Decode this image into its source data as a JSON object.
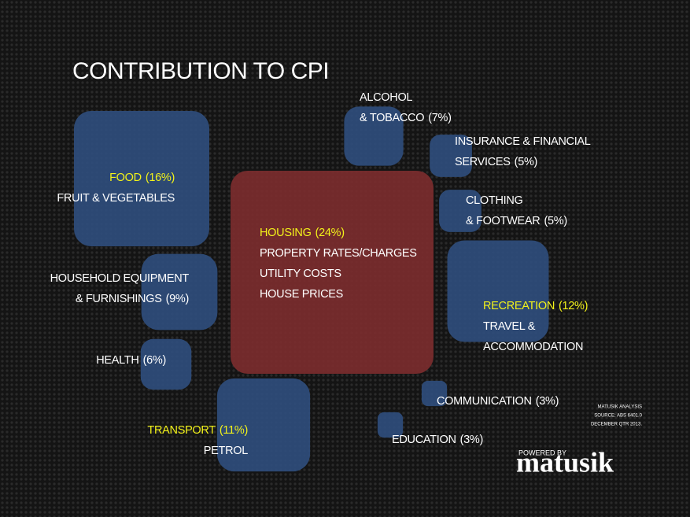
{
  "chart_data": {
    "type": "square",
    "title": "CONTRIBUTION TO CPI",
    "categories": [
      [
        "FOOD"
      ],
      [
        "ALCOHOL",
        "& TOBACCO"
      ],
      [
        "INSURANCE & FINANCIAL",
        "SERVICES"
      ],
      [
        "CLOTHING",
        "& FOOTWEAR"
      ],
      [
        "HOUSING"
      ],
      [
        "HOUSEHOLD EQUIPMENT",
        "& FURNISHINGS"
      ],
      [
        "RECREATION"
      ],
      [
        "HEALTH"
      ],
      [
        "TRANSPORT"
      ],
      [
        "COMMUNICATION"
      ],
      [
        "EDUCATION"
      ]
    ],
    "values": [
      16,
      7,
      5,
      5,
      24,
      9,
      12,
      6,
      11,
      3,
      3
    ],
    "value_labels": [
      "(16%)",
      "(7%)",
      "(5%)",
      "(5%)",
      "(24%)",
      "(9%)",
      "(12%)",
      "(6%)",
      "(11%)",
      "(3%)",
      "(3%)"
    ],
    "details": [
      [
        "FRUIT & VEGETABLES"
      ],
      [],
      [],
      [],
      [
        "PROPERTY RATES/CHARGES",
        "UTILITY COSTS",
        "HOUSE PRICES"
      ],
      [],
      [
        "TRAVEL &",
        "ACCOMMODATION"
      ],
      [],
      [
        "PETROL"
      ],
      [],
      []
    ],
    "colors": [
      "#2f4d7c",
      "#2f4d7c",
      "#2f4d7c",
      "#2f4d7c",
      "#7b2c2e",
      "#2f4d7c",
      "#2f4d7c",
      "#2f4d7c",
      "#2f4d7c",
      "#2f4d7c",
      "#2f4d7c"
    ],
    "label_colors": [
      "#f2f21a",
      "#ffffff",
      "#ffffff",
      "#ffffff",
      "#f2f21a",
      "#ffffff",
      "#f2f21a",
      "#ffffff",
      "#f2f21a",
      "#ffffff",
      "#ffffff"
    ],
    "source": [
      "MATUSIK ANALYSIS",
      "SOURCE: ABS 6401.0",
      "DECEMBER QTR 2013."
    ],
    "branding": {
      "prefix": "POWERED BY",
      "name": "matusik"
    }
  }
}
